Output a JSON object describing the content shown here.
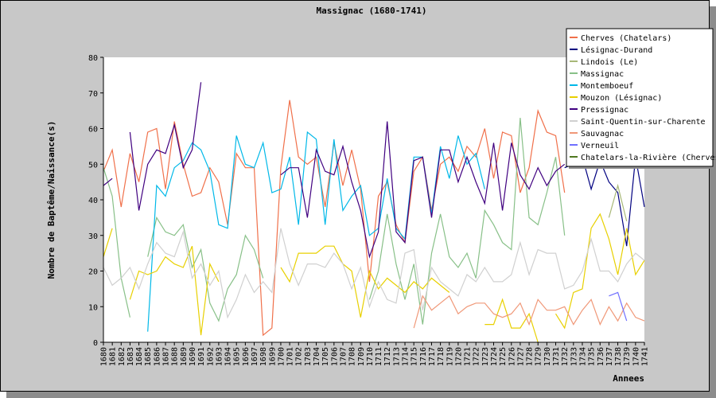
{
  "chart_data": {
    "type": "line",
    "title": "Massignac (1680-1741)",
    "xlabel": "Annees",
    "ylabel": "Nombre de Baptême/Naissance(s)",
    "ylim": [
      0,
      80
    ],
    "yticks": [
      0,
      10,
      20,
      30,
      40,
      50,
      60,
      70,
      80
    ],
    "grid": false,
    "legend_position": "top-right",
    "categories": [
      "1680",
      "1681",
      "1682",
      "1683",
      "1684",
      "1685",
      "1686",
      "1687",
      "1688",
      "1689",
      "1690",
      "1691",
      "1692",
      "1693",
      "1694",
      "1695",
      "1696",
      "1697",
      "1698",
      "1699",
      "1700",
      "1701",
      "1702",
      "1703",
      "1704",
      "1705",
      "1706",
      "1707",
      "1708",
      "1709",
      "1710",
      "1711",
      "1712",
      "1713",
      "1714",
      "1715",
      "1716",
      "1717",
      "1718",
      "1719",
      "1720",
      "1721",
      "1722",
      "1723",
      "1724",
      "1725",
      "1726",
      "1727",
      "1728",
      "1729",
      "1730",
      "1731",
      "1732",
      "1733",
      "1734",
      "1735",
      "1736",
      "1737",
      "1738",
      "1739",
      "1740",
      "1741"
    ],
    "series": [
      {
        "name": "Cherves (Chatelars)",
        "color": "#f0704a",
        "values": [
          48,
          54,
          38,
          53,
          45,
          59,
          60,
          43,
          62,
          50,
          41,
          42,
          49,
          45,
          33,
          53,
          49,
          49,
          2,
          4,
          49,
          68,
          52,
          50,
          52,
          38,
          56,
          44,
          54,
          43,
          17,
          41,
          45,
          33,
          28,
          48,
          52,
          37,
          50,
          52,
          48,
          55,
          52,
          60,
          46,
          59,
          58,
          42,
          49,
          65,
          59,
          58,
          42,
          null,
          null,
          null,
          null,
          null,
          null,
          null,
          null,
          null
        ]
      },
      {
        "name": "Lésignac-Durand",
        "color": "#000080",
        "values": [
          null,
          null,
          null,
          null,
          null,
          null,
          null,
          null,
          null,
          null,
          null,
          null,
          null,
          null,
          null,
          null,
          null,
          null,
          null,
          null,
          null,
          null,
          null,
          null,
          null,
          null,
          null,
          null,
          null,
          null,
          null,
          null,
          null,
          null,
          null,
          null,
          null,
          null,
          null,
          null,
          null,
          null,
          null,
          null,
          null,
          null,
          null,
          null,
          null,
          null,
          null,
          null,
          49,
          50,
          52,
          43,
          51,
          45,
          42,
          27,
          52,
          38
        ]
      },
      {
        "name": "Lindois (Le)",
        "color": "#a8b878",
        "values": [
          null,
          null,
          null,
          null,
          null,
          null,
          null,
          null,
          null,
          null,
          null,
          null,
          null,
          null,
          null,
          null,
          null,
          null,
          null,
          null,
          null,
          null,
          null,
          null,
          null,
          null,
          null,
          null,
          null,
          null,
          null,
          null,
          null,
          null,
          null,
          null,
          null,
          null,
          null,
          null,
          null,
          null,
          null,
          null,
          null,
          null,
          null,
          null,
          null,
          null,
          null,
          null,
          null,
          null,
          null,
          null,
          null,
          35,
          44,
          34,
          null,
          null
        ]
      },
      {
        "name": "Massignac",
        "color": "#88c088",
        "values": [
          49,
          41,
          18,
          7,
          null,
          24,
          35,
          31,
          30,
          33,
          21,
          26,
          11,
          6,
          15,
          19,
          30,
          26,
          18,
          null,
          null,
          null,
          null,
          null,
          null,
          null,
          null,
          null,
          null,
          null,
          12,
          20,
          36,
          22,
          12,
          22,
          5,
          25,
          36,
          24,
          21,
          25,
          18,
          37,
          33,
          28,
          26,
          63,
          35,
          33,
          42,
          52,
          30,
          null,
          null,
          null,
          null,
          null,
          null,
          null,
          null,
          null
        ]
      },
      {
        "name": "Montemboeuf",
        "color": "#00b8e8",
        "values": [
          null,
          null,
          null,
          null,
          null,
          3,
          44,
          41,
          49,
          51,
          56,
          54,
          48,
          33,
          32,
          58,
          50,
          49,
          56,
          42,
          43,
          52,
          33,
          59,
          57,
          33,
          57,
          37,
          41,
          44,
          30,
          32,
          46,
          32,
          29,
          52,
          52,
          36,
          55,
          46,
          58,
          50,
          53,
          43,
          null,
          null,
          null,
          null,
          null,
          null,
          null,
          null,
          null,
          null,
          null,
          null,
          null,
          null,
          null,
          null,
          null,
          null
        ]
      },
      {
        "name": "Mouzon (Lésignac)",
        "color": "#e8d000",
        "values": [
          24,
          32,
          null,
          12,
          20,
          19,
          20,
          24,
          22,
          21,
          27,
          2,
          22,
          17,
          null,
          null,
          null,
          null,
          null,
          null,
          21,
          17,
          25,
          25,
          25,
          27,
          27,
          22,
          20,
          7,
          20,
          15,
          18,
          16,
          14,
          17,
          15,
          18,
          16,
          14,
          null,
          null,
          null,
          5,
          5,
          12,
          4,
          4,
          8,
          0,
          null,
          8,
          4,
          14,
          15,
          32,
          36,
          29,
          19,
          32,
          19,
          23
        ]
      },
      {
        "name": "Pressignac",
        "color": "#400080",
        "values": [
          44,
          46,
          null,
          59,
          37,
          50,
          54,
          53,
          61,
          49,
          54,
          73,
          null,
          null,
          null,
          null,
          null,
          null,
          null,
          null,
          47,
          49,
          49,
          35,
          54,
          48,
          47,
          55,
          45,
          37,
          24,
          31,
          62,
          31,
          28,
          51,
          52,
          35,
          54,
          54,
          45,
          52,
          45,
          39,
          56,
          37,
          56,
          47,
          43,
          49,
          44,
          48,
          50,
          null,
          null,
          null,
          null,
          null,
          null,
          null,
          null,
          null
        ]
      },
      {
        "name": "Saint-Quentin-sur-Charente",
        "color": "#d0d0d0",
        "values": [
          21,
          16,
          18,
          21,
          15,
          22,
          28,
          25,
          24,
          31,
          18,
          22,
          16,
          20,
          7,
          12,
          19,
          14,
          17,
          14,
          32,
          22,
          16,
          22,
          22,
          21,
          25,
          22,
          15,
          21,
          10,
          17,
          12,
          11,
          25,
          26,
          9,
          21,
          17,
          15,
          13,
          19,
          17,
          21,
          17,
          17,
          19,
          28,
          19,
          26,
          25,
          25,
          15,
          16,
          20,
          29,
          20,
          20,
          17,
          22,
          25,
          23
        ]
      },
      {
        "name": "Sauvagnac",
        "color": "#f09878",
        "values": [
          null,
          null,
          null,
          null,
          null,
          null,
          null,
          null,
          null,
          null,
          null,
          null,
          null,
          null,
          null,
          null,
          null,
          null,
          null,
          null,
          null,
          null,
          null,
          null,
          null,
          null,
          null,
          null,
          null,
          null,
          null,
          null,
          null,
          null,
          null,
          4,
          13,
          9,
          11,
          13,
          8,
          10,
          11,
          11,
          8,
          7,
          8,
          11,
          5,
          12,
          9,
          9,
          10,
          5,
          9,
          12,
          5,
          10,
          6,
          11,
          7,
          6
        ]
      },
      {
        "name": "Verneuil",
        "color": "#7070ff",
        "values": [
          null,
          null,
          null,
          null,
          null,
          null,
          null,
          null,
          null,
          null,
          null,
          null,
          null,
          null,
          null,
          null,
          null,
          null,
          null,
          null,
          null,
          null,
          null,
          null,
          null,
          null,
          null,
          null,
          null,
          null,
          null,
          null,
          null,
          null,
          null,
          null,
          null,
          null,
          null,
          null,
          null,
          null,
          null,
          null,
          null,
          null,
          null,
          null,
          null,
          null,
          null,
          null,
          null,
          null,
          null,
          null,
          null,
          13,
          14,
          6,
          null,
          null
        ]
      },
      {
        "name": "Chatelars-la-Rivière (Cherves)",
        "color": "#507820",
        "values": [
          null,
          null,
          null,
          null,
          null,
          null,
          null,
          null,
          null,
          null,
          null,
          null,
          null,
          null,
          null,
          null,
          null,
          null,
          null,
          null,
          null,
          null,
          null,
          null,
          null,
          null,
          null,
          null,
          null,
          null,
          null,
          null,
          null,
          null,
          null,
          null,
          null,
          null,
          null,
          null,
          null,
          null,
          null,
          null,
          null,
          null,
          null,
          null,
          null,
          null,
          null,
          null,
          null,
          null,
          null,
          null,
          null,
          null,
          null,
          null,
          null,
          null
        ]
      }
    ]
  }
}
